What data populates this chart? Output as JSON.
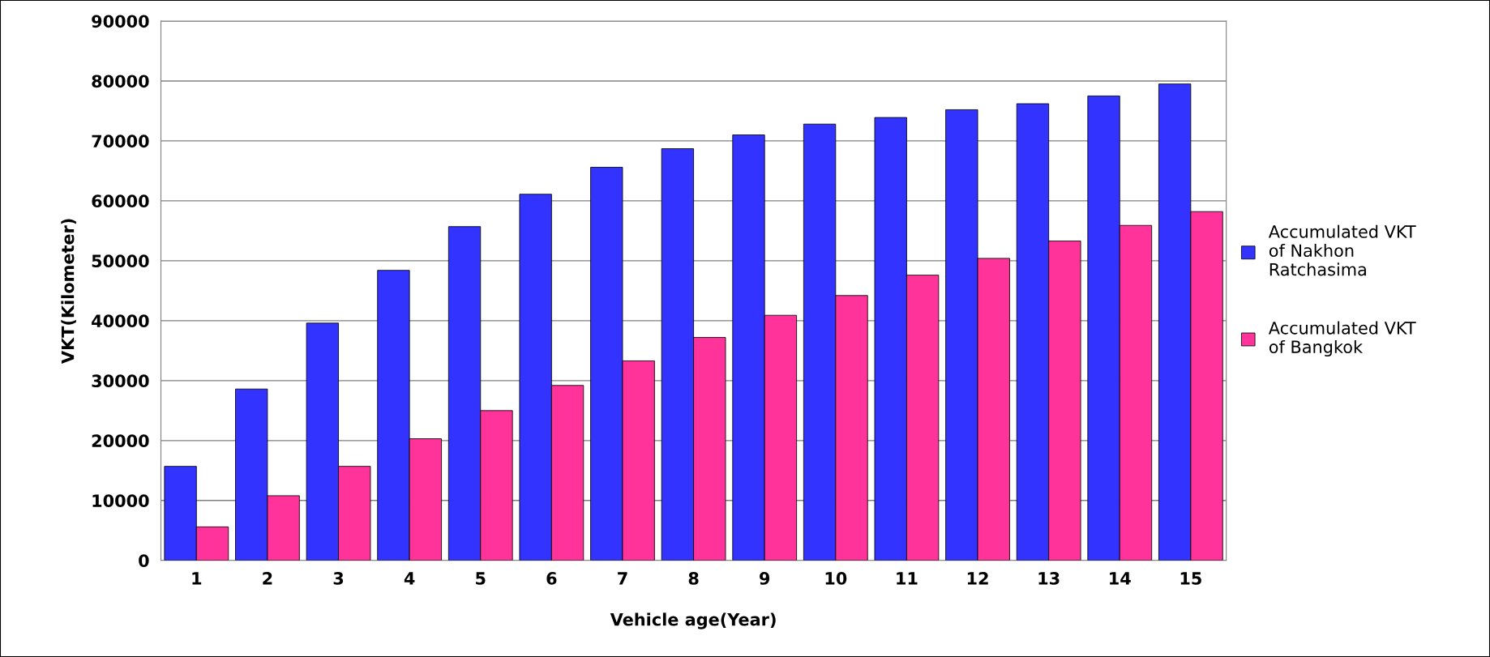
{
  "chart_data": {
    "type": "bar",
    "xlabel": "Vehicle age(Year)",
    "ylabel": "VKT(Kilometer)",
    "categories": [
      "1",
      "2",
      "3",
      "4",
      "5",
      "6",
      "7",
      "8",
      "9",
      "10",
      "11",
      "12",
      "13",
      "14",
      "15"
    ],
    "series": [
      {
        "name": "Accumulated VKT of Nakhon Ratchasima",
        "color": "#3333ff",
        "values": [
          15700,
          28600,
          39600,
          48400,
          55700,
          61100,
          65600,
          68700,
          71000,
          72800,
          73900,
          75200,
          76200,
          77500,
          79500
        ]
      },
      {
        "name": "Accumulated VKT of Bangkok",
        "color": "#ff3399",
        "values": [
          5600,
          10800,
          15700,
          20300,
          25000,
          29200,
          33300,
          37200,
          40900,
          44200,
          47600,
          50400,
          53300,
          55900,
          58200
        ]
      }
    ],
    "ylim": [
      0,
      90000
    ],
    "yticks": [
      0,
      10000,
      20000,
      30000,
      40000,
      50000,
      60000,
      70000,
      80000,
      90000
    ],
    "grid": "y",
    "legend": "right"
  }
}
